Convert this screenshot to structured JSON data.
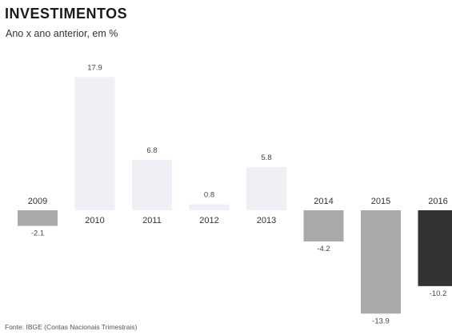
{
  "title": "INVESTIMENTOS",
  "subtitle": "Ano x ano anterior, em %",
  "source": "Fonte: IBGE (Contas Nacionais Trimestrais)",
  "colors": {
    "positive_bar": "#f1eef6",
    "negative_bar": "#a9a9a9",
    "highlight_bar": "#333333"
  },
  "chart_data": {
    "type": "bar",
    "title": "INVESTIMENTOS",
    "subtitle": "Ano x ano anterior, em %",
    "categories": [
      "2009",
      "2010",
      "2011",
      "2012",
      "2013",
      "2014",
      "2015",
      "2016"
    ],
    "values": [
      -2.1,
      17.9,
      6.8,
      0.8,
      5.8,
      -4.2,
      -13.9,
      -10.2
    ],
    "value_labels": [
      "-2.1",
      "17.9",
      "6.8",
      "0.8",
      "5.8",
      "-4.2",
      "-13.9",
      "-10.2"
    ],
    "highlight": "2016",
    "xlabel": "",
    "ylabel": "",
    "ylim": [
      -14,
      18
    ],
    "grid": false,
    "legend": "none"
  }
}
